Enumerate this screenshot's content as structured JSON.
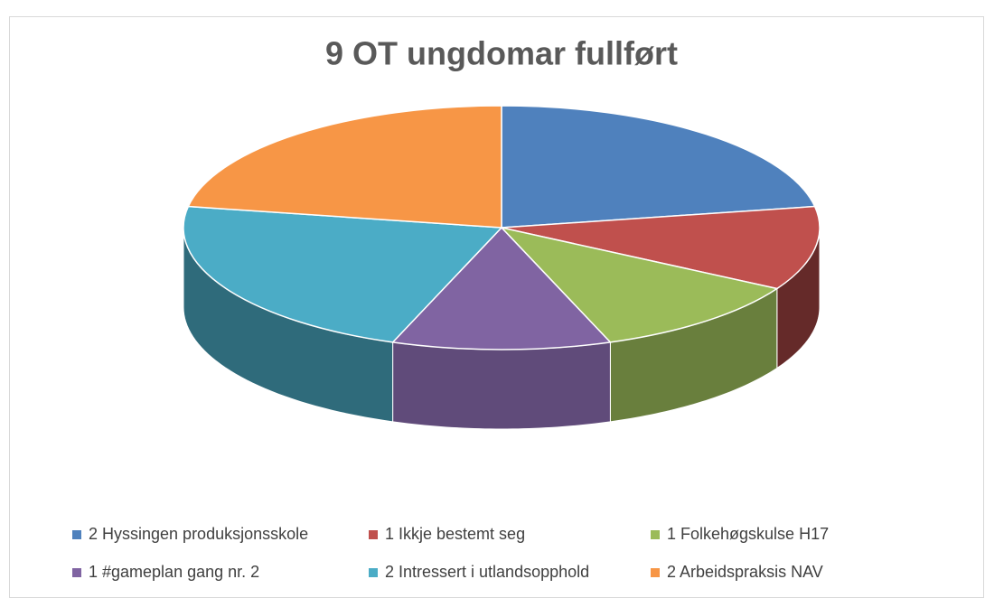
{
  "chart_data": {
    "type": "pie",
    "title": "9 OT ungdomar fullført",
    "categories": [
      "2 Hyssingen produksjonsskole",
      "1 Ikkje bestemt seg",
      "1 Folkehøgskulse H17",
      "1 #gameplan gang nr. 2",
      "2 Intressert i utlandsopphold",
      "2 Arbeidspraksis NAV"
    ],
    "values": [
      2,
      1,
      1,
      1,
      2,
      2
    ],
    "colors": [
      "#4f81bd",
      "#c0504d",
      "#9bbb59",
      "#8064a2",
      "#4bacc6",
      "#f79646"
    ],
    "legend": "bottom"
  }
}
